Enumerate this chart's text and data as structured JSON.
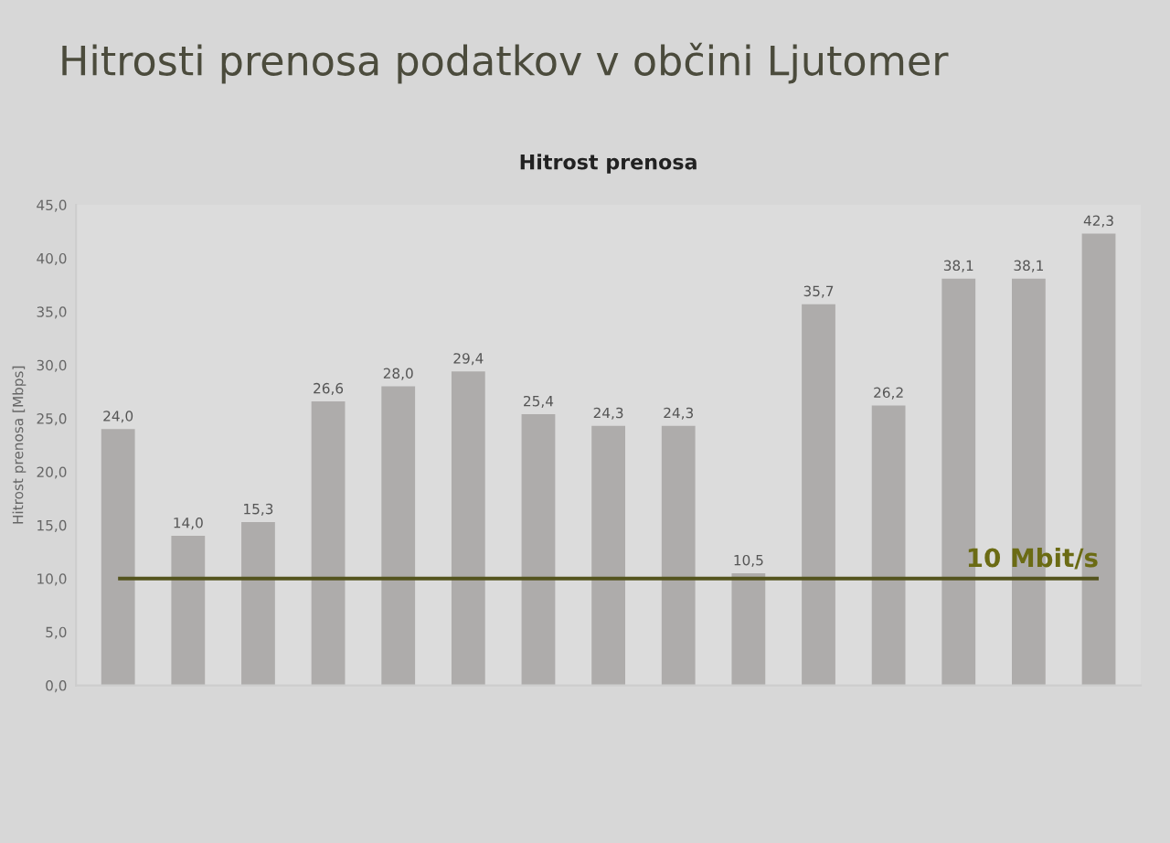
{
  "chart_data": {
    "type": "bar",
    "title": "Hitrosti prenosa podatkov v občini Ljutomer",
    "subtitle": "Hitrost prenosa",
    "ylabel": "Hitrost prenosa [Mbps]",
    "categories": [
      null,
      null,
      null,
      null,
      null,
      null,
      null,
      null,
      null,
      null,
      null,
      null,
      null,
      null,
      null
    ],
    "values": [
      24.0,
      14.0,
      15.3,
      26.6,
      28.0,
      29.4,
      25.4,
      24.3,
      24.3,
      10.5,
      35.7,
      26.2,
      38.1,
      38.1,
      42.3
    ],
    "value_labels": [
      "24,0",
      "14,0",
      "15,3",
      "26,6",
      "28,0",
      "29,4",
      "25,4",
      "24,3",
      "24,3",
      "10,5",
      "35,7",
      "26,2",
      "38,1",
      "38,1",
      "42,3"
    ],
    "color": "#aeacab",
    "ylim": [
      0,
      45
    ],
    "yticks": [
      {
        "value": 0,
        "label": "0,0"
      },
      {
        "value": 5,
        "label": "5,0"
      },
      {
        "value": 10,
        "label": "10,0"
      },
      {
        "value": 15,
        "label": "15,0"
      },
      {
        "value": 20,
        "label": "20,0"
      },
      {
        "value": 25,
        "label": "25,0"
      },
      {
        "value": 30,
        "label": "30,0"
      },
      {
        "value": 35,
        "label": "35,0"
      },
      {
        "value": 40,
        "label": "40,0"
      },
      {
        "value": 45,
        "label": "45,0"
      }
    ],
    "ref_lines": [
      {
        "axis": "y",
        "value": 10,
        "label": "10 Mbit/s",
        "color": "#54541e"
      }
    ],
    "tick_labels": "y",
    "grid": false
  }
}
